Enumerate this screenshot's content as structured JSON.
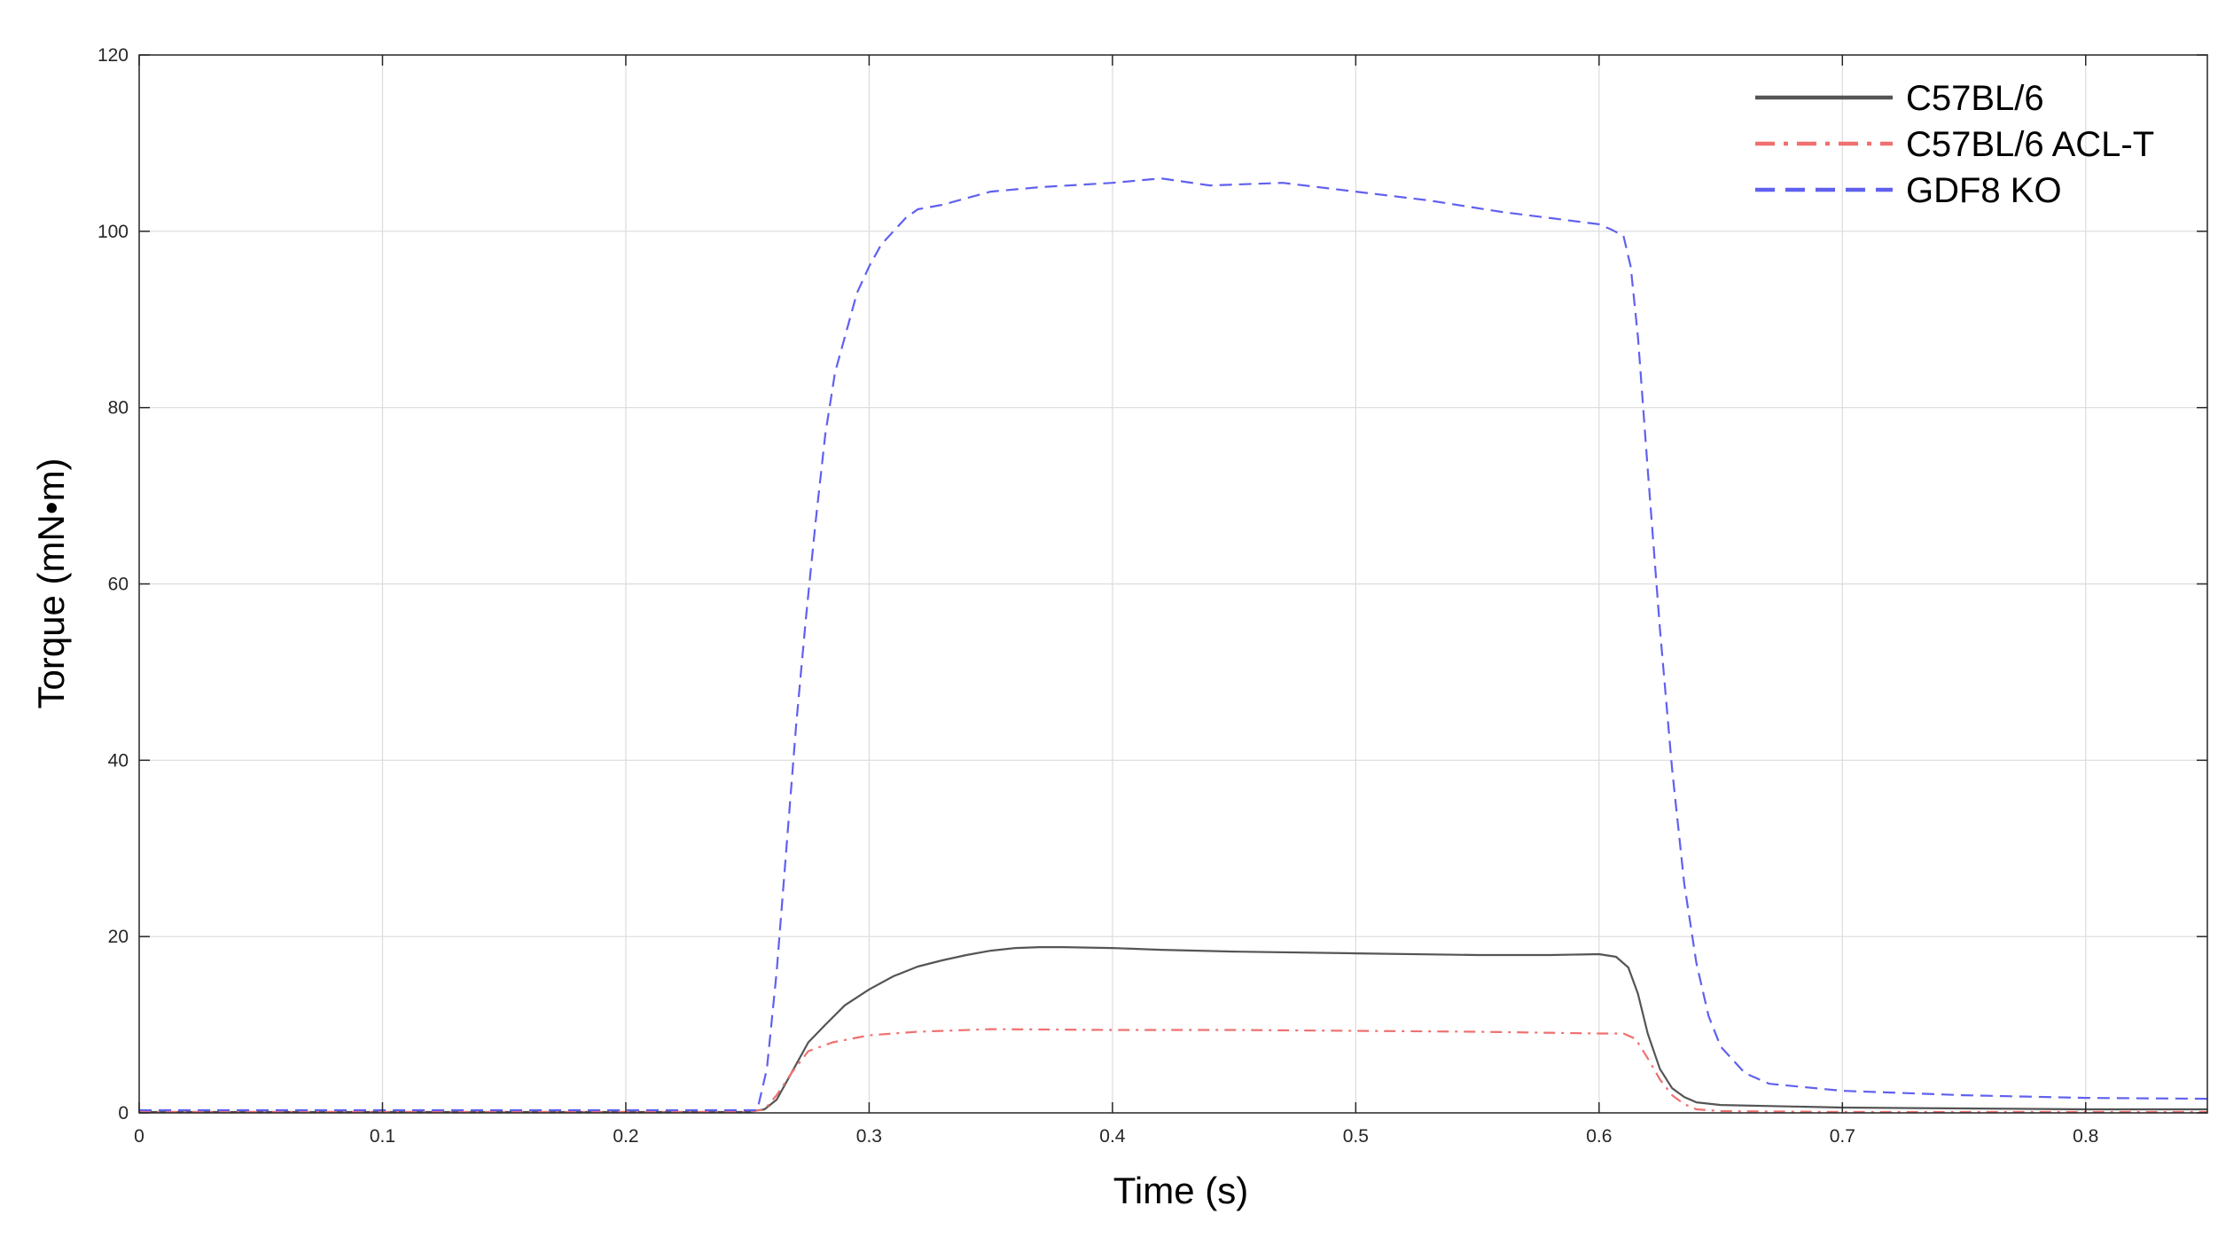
{
  "chart_data": {
    "type": "line",
    "xlabel": "Time (s)",
    "ylabel": "Torque (mN•m)",
    "xlim": [
      0,
      0.85
    ],
    "ylim": [
      0,
      120
    ],
    "xticks": [
      0,
      0.1,
      0.2,
      0.3,
      0.4,
      0.5,
      0.6,
      0.7,
      0.8
    ],
    "xtick_labels": [
      "0",
      "0.1",
      "0.2",
      "0.3",
      "0.4",
      "0.5",
      "0.6",
      "0.7",
      "0.8"
    ],
    "yticks": [
      0,
      20,
      40,
      60,
      80,
      100,
      120
    ],
    "ytick_labels": [
      "0",
      "20",
      "40",
      "60",
      "80",
      "100",
      "120"
    ],
    "grid": true,
    "legend_position": "top-right",
    "series": [
      {
        "name": "C57BL/6",
        "color": "#555555",
        "style": "solid",
        "x": [
          0,
          0.25,
          0.257,
          0.262,
          0.268,
          0.275,
          0.282,
          0.29,
          0.3,
          0.31,
          0.32,
          0.33,
          0.34,
          0.35,
          0.36,
          0.37,
          0.38,
          0.4,
          0.42,
          0.45,
          0.5,
          0.55,
          0.58,
          0.6,
          0.607,
          0.612,
          0.616,
          0.62,
          0.625,
          0.63,
          0.635,
          0.64,
          0.65,
          0.7,
          0.75,
          0.8,
          0.85
        ],
        "y": [
          0.1,
          0.1,
          0.4,
          1.5,
          4.5,
          8.0,
          10.0,
          12.2,
          14.0,
          15.5,
          16.6,
          17.3,
          17.9,
          18.4,
          18.7,
          18.8,
          18.8,
          18.7,
          18.5,
          18.3,
          18.1,
          17.9,
          17.9,
          18.0,
          17.7,
          16.5,
          13.5,
          9.0,
          5.0,
          2.8,
          1.8,
          1.2,
          0.9,
          0.6,
          0.5,
          0.4,
          0.4
        ]
      },
      {
        "name": "C57BL/6 ACL-T",
        "color": "#f07070",
        "style": "dashdot",
        "x": [
          0,
          0.25,
          0.257,
          0.262,
          0.268,
          0.275,
          0.285,
          0.3,
          0.32,
          0.35,
          0.4,
          0.45,
          0.5,
          0.55,
          0.6,
          0.61,
          0.615,
          0.62,
          0.625,
          0.63,
          0.635,
          0.64,
          0.65,
          0.7,
          0.8,
          0.85
        ],
        "y": [
          0.1,
          0.1,
          0.4,
          2.0,
          4.5,
          7.0,
          8.0,
          8.8,
          9.2,
          9.5,
          9.4,
          9.4,
          9.3,
          9.2,
          9.0,
          9.0,
          8.4,
          6.2,
          3.8,
          2.0,
          1.0,
          0.4,
          0.2,
          0.1,
          0.1,
          0.1
        ]
      },
      {
        "name": "GDF8 KO",
        "color": "#6060f0",
        "style": "dashed",
        "x": [
          0,
          0.254,
          0.258,
          0.262,
          0.266,
          0.27,
          0.274,
          0.278,
          0.282,
          0.286,
          0.29,
          0.295,
          0.3,
          0.305,
          0.31,
          0.315,
          0.32,
          0.33,
          0.35,
          0.37,
          0.4,
          0.42,
          0.44,
          0.47,
          0.5,
          0.53,
          0.56,
          0.58,
          0.6,
          0.605,
          0.61,
          0.613,
          0.616,
          0.62,
          0.625,
          0.63,
          0.635,
          0.64,
          0.645,
          0.65,
          0.66,
          0.67,
          0.7,
          0.75,
          0.8,
          0.85
        ],
        "y": [
          0.3,
          0.3,
          5,
          16,
          30,
          44,
          56,
          67,
          77,
          84,
          88,
          93,
          96,
          98.5,
          100,
          101.5,
          102.5,
          103,
          104.5,
          105,
          105.5,
          106,
          105.2,
          105.5,
          104.5,
          103.5,
          102.2,
          101.5,
          100.8,
          100.2,
          99.5,
          96,
          88,
          73,
          55,
          39,
          26,
          17,
          11,
          7.5,
          4.5,
          3.3,
          2.5,
          2.0,
          1.7,
          1.6
        ]
      }
    ]
  }
}
